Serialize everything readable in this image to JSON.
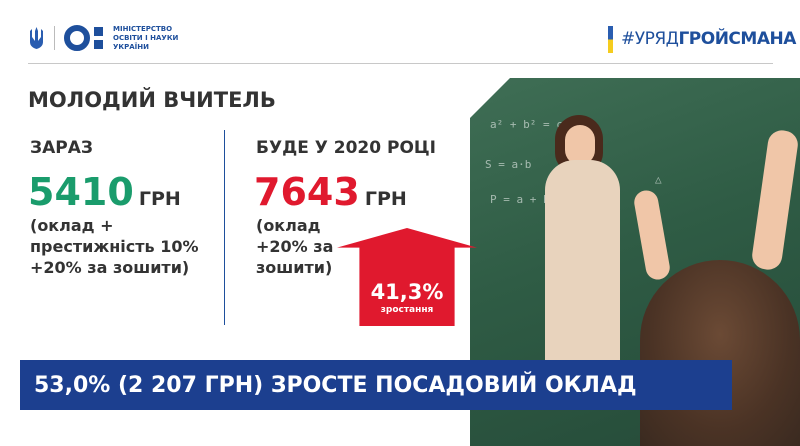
{
  "header": {
    "ministry_lines": [
      "МІНІСТЕРСТВО",
      "ОСВІТИ І НАУКИ",
      "УКРАЇНИ"
    ],
    "hashtag_prefix": "#УРЯД",
    "hashtag_suffix": "ГРОЙСМАНА"
  },
  "title": "МОЛОДИЙ ВЧИТЕЛЬ",
  "now": {
    "label": "ЗАРАЗ",
    "amount": "5410",
    "unit": "ГРН",
    "note_lines": [
      "(оклад +",
      "престижність 10%",
      "+20% за зошити)"
    ]
  },
  "future": {
    "label": "БУДЕ У 2020 РОЦІ",
    "amount": "7643",
    "unit": "ГРН",
    "note_lines": [
      "(оклад",
      "+20% за",
      "зошити)"
    ]
  },
  "growth": {
    "percent": "41,3%",
    "caption": "зростання"
  },
  "banner": "53,0%  (2 207 ГРН) ЗРОСТЕ ПОСАДОВИЙ ОКЛАД",
  "colors": {
    "green": "#1a9c6c",
    "red": "#e0192e",
    "navy": "#1c3f8f",
    "blue": "#1e4f9c",
    "flag_blue": "#2a5db0",
    "flag_yellow": "#f5cc1e"
  }
}
